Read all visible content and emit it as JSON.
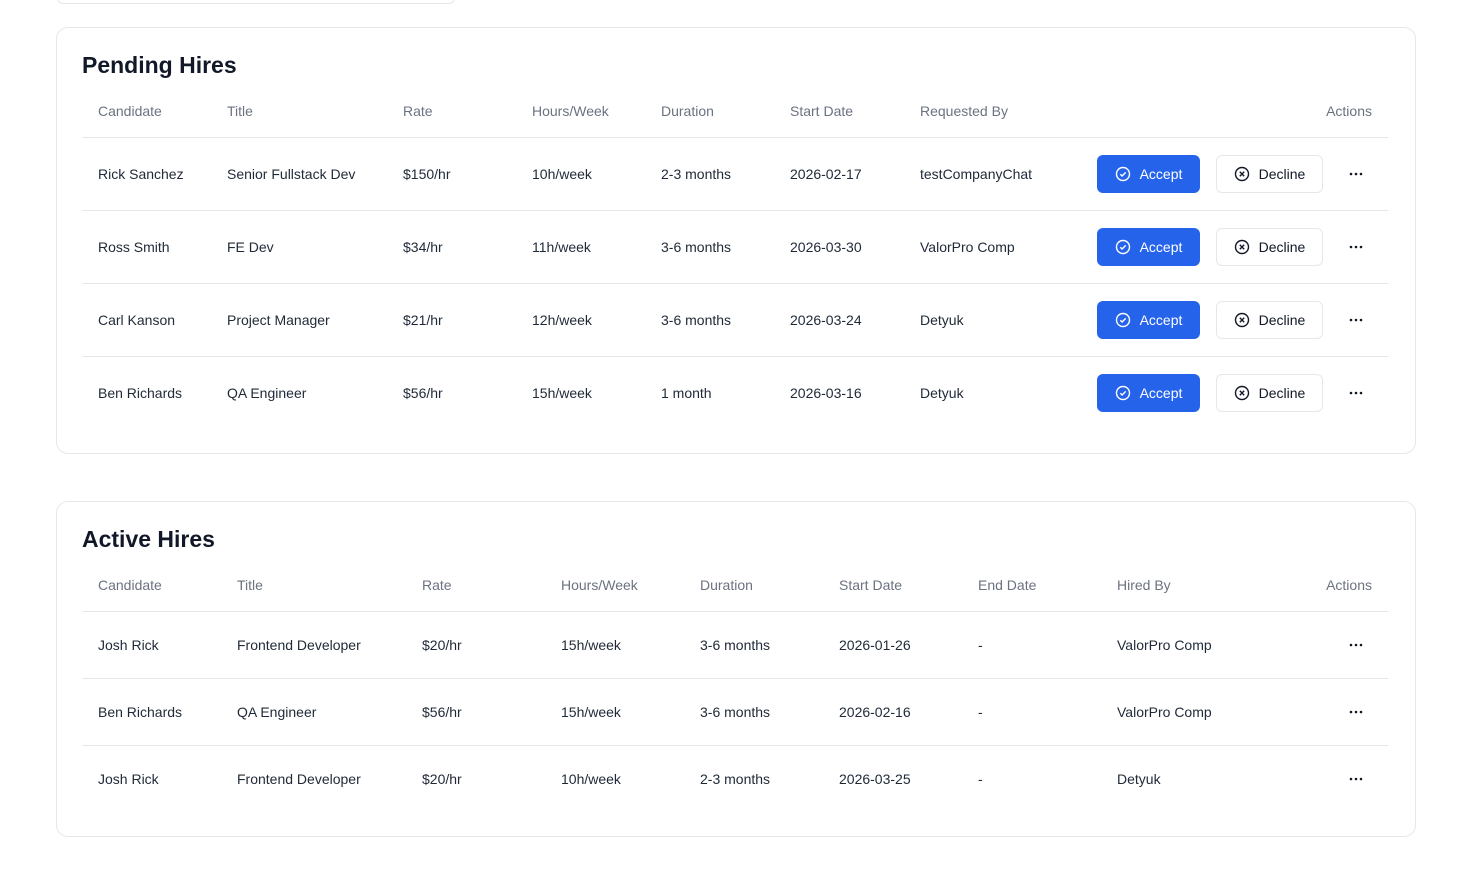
{
  "pending": {
    "title": "Pending Hires",
    "headers": [
      "Candidate",
      "Title",
      "Rate",
      "Hours/Week",
      "Duration",
      "Start Date",
      "Requested By",
      "Actions"
    ],
    "rows": [
      [
        "Rick Sanchez",
        "Senior Fullstack Dev",
        "$150/hr",
        "10h/week",
        "2-3 months",
        "2026-02-17",
        "testCompanyChat"
      ],
      [
        "Ross Smith",
        "FE Dev",
        "$34/hr",
        "11h/week",
        "3-6 months",
        "2026-03-30",
        "ValorPro Comp"
      ],
      [
        "Carl Kanson",
        "Project Manager",
        "$21/hr",
        "12h/week",
        "3-6 months",
        "2026-03-24",
        "Detyuk"
      ],
      [
        "Ben Richards",
        "QA Engineer",
        "$56/hr",
        "15h/week",
        "1 month",
        "2026-03-16",
        "Detyuk"
      ]
    ],
    "buttons": {
      "accept": "Accept",
      "decline": "Decline"
    }
  },
  "active": {
    "title": "Active Hires",
    "headers": [
      "Candidate",
      "Title",
      "Rate",
      "Hours/Week",
      "Duration",
      "Start Date",
      "End Date",
      "Hired By",
      "Actions"
    ],
    "rows": [
      [
        "Josh Rick",
        "Frontend Developer",
        "$20/hr",
        "15h/week",
        "3-6 months",
        "2026-01-26",
        "-",
        "ValorPro Comp"
      ],
      [
        "Ben Richards",
        "QA Engineer",
        "$56/hr",
        "15h/week",
        "3-6 months",
        "2026-02-16",
        "-",
        "ValorPro Comp"
      ],
      [
        "Josh Rick",
        "Frontend Developer",
        "$20/hr",
        "10h/week",
        "2-3 months",
        "2026-03-25",
        "-",
        "Detyuk"
      ]
    ]
  }
}
